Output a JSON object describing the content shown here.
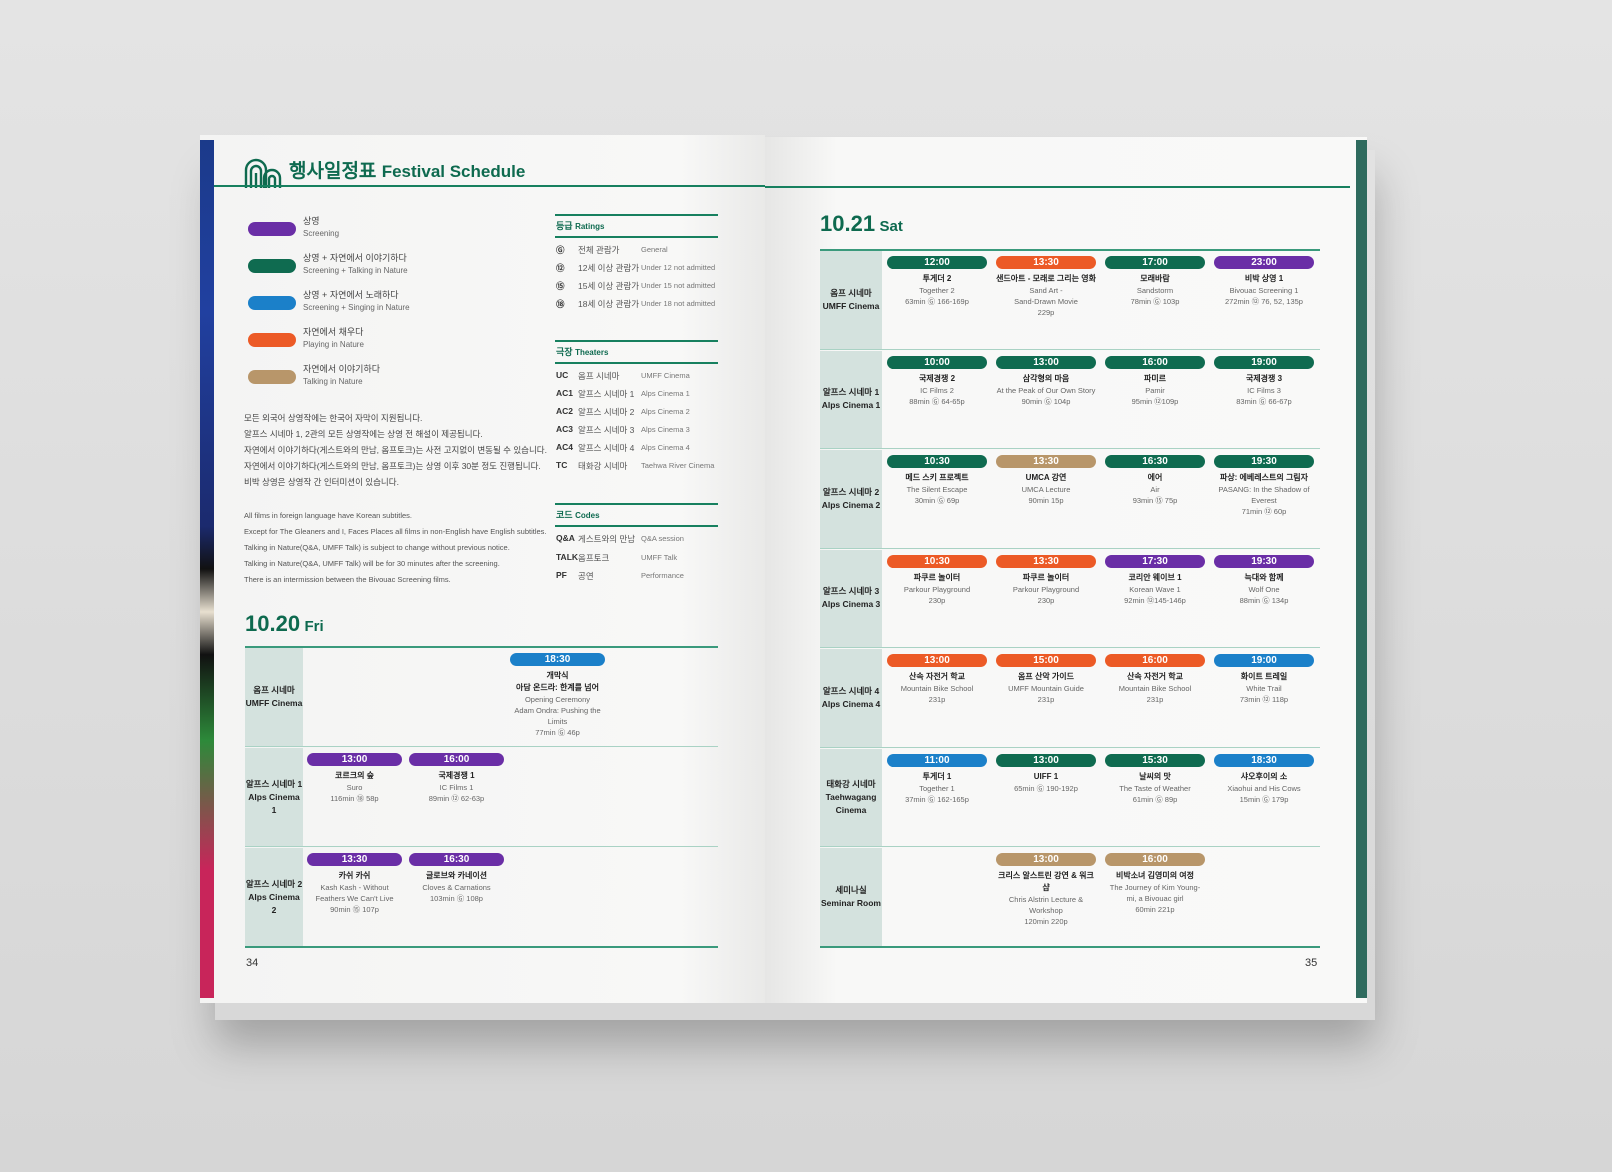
{
  "colors": {
    "screening": "#6a2ea6",
    "talking": "#0f6b50",
    "singing": "#1b80c9",
    "playing": "#ec5a26",
    "talk_only": "#b8966a",
    "accent": "#0e6a4f"
  },
  "header": {
    "title_ko": "행사일정표",
    "title_en": "Festival Schedule",
    "logo": "mountain-logo-icon"
  },
  "legend": [
    {
      "key": "screening",
      "ko": "상영",
      "en": "Screening"
    },
    {
      "key": "talking",
      "ko": "상영 + 자연에서 이야기하다",
      "en": "Screening + Talking in Nature"
    },
    {
      "key": "singing",
      "ko": "상영 + 자연에서 노래하다",
      "en": "Screening + Singing in Nature"
    },
    {
      "key": "playing",
      "ko": "자연에서 채우다",
      "en": "Playing in Nature"
    },
    {
      "key": "talk_only",
      "ko": "자연에서 이야기하다",
      "en": "Talking in Nature"
    }
  ],
  "notes_ko": [
    "모든 외국어 상영작에는 한국어 자막이 지원됩니다.",
    "알프스 시네마 1, 2관의 모든 상영작에는 상영 전 해설이 제공됩니다.",
    "자연에서 이야기하다(게스트와의 만남, 옴프토크)는 사전 고지없이 변동될 수 있습니다.",
    "자연에서 이야기하다(게스트와의 만남, 옴프토크)는 상영 이후 30분 정도 진행됩니다.",
    "비박 상영은 상영작 간 인터미션이 있습니다."
  ],
  "notes_en": [
    "All films in foreign language have Korean subtitles.",
    "Except for The Gleaners and I, Faces Places all films in non-English have English subtitles.",
    "Talking in Nature(Q&A, UMFF Talk) is subject to change without previous notice.",
    "Talking in Nature(Q&A, UMFF Talk) will be for 30 minutes after the screening.",
    "There is an intermission between the Bivouac Screening films."
  ],
  "ratings": {
    "title_ko": "등급",
    "title_en": "Ratings",
    "rows": [
      {
        "code": "Ⓖ",
        "ko": "전체 관람가",
        "en": "General"
      },
      {
        "code": "⑫",
        "ko": "12세 이상 관람가",
        "en": "Under 12 not admitted"
      },
      {
        "code": "⑮",
        "ko": "15세 이상 관람가",
        "en": "Under 15 not admitted"
      },
      {
        "code": "⑱",
        "ko": "18세 이상 관람가",
        "en": "Under 18 not admitted"
      }
    ]
  },
  "theaters": {
    "title_ko": "극장",
    "title_en": "Theaters",
    "rows": [
      {
        "code": "UC",
        "ko": "옴프 시네마",
        "en": "UMFF Cinema"
      },
      {
        "code": "AC1",
        "ko": "알프스 시네마 1",
        "en": "Alps Cinema 1"
      },
      {
        "code": "AC2",
        "ko": "알프스 시네마 2",
        "en": "Alps Cinema 2"
      },
      {
        "code": "AC3",
        "ko": "알프스 시네마 3",
        "en": "Alps Cinema 3"
      },
      {
        "code": "AC4",
        "ko": "알프스 시네마 4",
        "en": "Alps Cinema 4"
      },
      {
        "code": "TC",
        "ko": "태화강 시네마",
        "en": "Taehwa River Cinema"
      }
    ]
  },
  "codes": {
    "title_ko": "코드",
    "title_en": "Codes",
    "rows": [
      {
        "code": "Q&A",
        "ko": "게스트와의 만남",
        "en": "Q&A session"
      },
      {
        "code": "TALK",
        "ko": "옴프토크",
        "en": "UMFF Talk"
      },
      {
        "code": "PF",
        "ko": "공연",
        "en": "Performance"
      }
    ]
  },
  "day1": {
    "date": "10.20",
    "weekday": "Fri",
    "page": "34",
    "rows": [
      {
        "ko": "옴프 시네마",
        "en": "UMFF Cinema",
        "events": [
          null,
          null,
          {
            "time": "18:30",
            "key": "singing",
            "ko": "개막식\n아담 온드라: 한계를 넘어",
            "en": "Opening Ceremony\nAdam Ondra: Pushing the Limits",
            "info": "77min Ⓖ 46p"
          }
        ]
      },
      {
        "ko": "알프스 시네마 1",
        "en": "Alps Cinema 1",
        "events": [
          {
            "time": "13:00",
            "key": "screening",
            "ko": "코르크의 숲",
            "en": "Suro",
            "info": "116min ⑱ 58p"
          },
          {
            "time": "16:00",
            "key": "screening",
            "ko": "국제경쟁 1",
            "en": "IC Films 1",
            "info": "89min ⑫ 62-63p"
          }
        ]
      },
      {
        "ko": "알프스 시네마 2",
        "en": "Alps Cinema 2",
        "events": [
          {
            "time": "13:30",
            "key": "screening",
            "ko": "카쉬 카쉬",
            "en": "Kash Kash - Without Feathers We Can't Live",
            "info": "90min ⑮ 107p"
          },
          {
            "time": "16:30",
            "key": "screening",
            "ko": "글로브와 카네이션",
            "en": "Cloves & Carnations",
            "info": "103min Ⓖ 108p"
          }
        ]
      }
    ]
  },
  "day2": {
    "date": "10.21",
    "weekday": "Sat",
    "page": "35",
    "rows": [
      {
        "ko": "옴프 시네마",
        "en": "UMFF Cinema",
        "events": [
          {
            "time": "12:00",
            "key": "talking",
            "ko": "투게더 2",
            "en": "Together 2",
            "info": "63min Ⓖ 166-169p"
          },
          {
            "time": "13:30",
            "key": "playing",
            "ko": "샌드아트 - 모래로 그리는 영화",
            "en": "Sand Art -\nSand-Drawn Movie",
            "info": "229p"
          },
          {
            "time": "17:00",
            "key": "talking",
            "ko": "모래바람",
            "en": "Sandstorm",
            "info": "78min Ⓖ 103p"
          },
          {
            "time": "23:00",
            "key": "screening",
            "ko": "비박 상영 1",
            "en": "Bivouac Screening 1",
            "info": "272min ⑫ 76, 52, 135p"
          }
        ]
      },
      {
        "ko": "알프스 시네마 1",
        "en": "Alps Cinema 1",
        "events": [
          {
            "time": "10:00",
            "key": "talking",
            "ko": "국제경쟁 2",
            "en": "IC Films 2",
            "info": "88min Ⓖ 64-65p"
          },
          {
            "time": "13:00",
            "key": "talking",
            "ko": "삼각형의 마음",
            "en": "At the Peak of Our Own Story",
            "info": "90min Ⓖ 104p"
          },
          {
            "time": "16:00",
            "key": "talking",
            "ko": "파미르",
            "en": "Pamir",
            "info": "95min ⑫109p"
          },
          {
            "time": "19:00",
            "key": "talking",
            "ko": "국제경쟁 3",
            "en": "IC Films 3",
            "info": "83min Ⓖ 66-67p"
          }
        ]
      },
      {
        "ko": "알프스 시네마 2",
        "en": "Alps Cinema 2",
        "events": [
          {
            "time": "10:30",
            "key": "talking",
            "ko": "메드 스키 프로젝트",
            "en": "The Silent Escape",
            "info": "30min Ⓖ 69p"
          },
          {
            "time": "13:30",
            "key": "talk_only",
            "ko": "UMCA 강연",
            "en": "UMCA Lecture",
            "info": "90min 15p"
          },
          {
            "time": "16:30",
            "key": "talking",
            "ko": "에어",
            "en": "Air",
            "info": "93min ⑮ 75p"
          },
          {
            "time": "19:30",
            "key": "talking",
            "ko": "파상: 에베레스트의 그림자",
            "en": "PASANG: In the Shadow of Everest",
            "info": "71min ⑫ 60p"
          }
        ]
      },
      {
        "ko": "알프스 시네마 3",
        "en": "Alps Cinema 3",
        "events": [
          {
            "time": "10:30",
            "key": "playing",
            "ko": "파쿠르 놀이터",
            "en": "Parkour Playground",
            "info": "230p"
          },
          {
            "time": "13:30",
            "key": "playing",
            "ko": "파쿠르 놀이터",
            "en": "Parkour Playground",
            "info": "230p"
          },
          {
            "time": "17:30",
            "key": "screening",
            "ko": "코리안 웨이브 1",
            "en": "Korean Wave 1",
            "info": "92min ⑫145-146p"
          },
          {
            "time": "19:30",
            "key": "screening",
            "ko": "늑대와 함께",
            "en": "Wolf One",
            "info": "88min Ⓖ 134p"
          }
        ]
      },
      {
        "ko": "알프스 시네마 4",
        "en": "Alps Cinema 4",
        "events": [
          {
            "time": "13:00",
            "key": "playing",
            "ko": "산속 자전거 학교",
            "en": "Mountain Bike School",
            "info": "231p"
          },
          {
            "time": "15:00",
            "key": "playing",
            "ko": "옴프 산악 가이드",
            "en": "UMFF Mountain Guide",
            "info": "231p"
          },
          {
            "time": "16:00",
            "key": "playing",
            "ko": "산속 자전거 학교",
            "en": "Mountain Bike School",
            "info": "231p"
          },
          {
            "time": "19:00",
            "key": "singing",
            "ko": "화이트 트레일",
            "en": "White Trail",
            "info": "73min ⑫ 118p"
          }
        ]
      },
      {
        "ko": "태화강 시네마",
        "en": "Taehwagang Cinema",
        "events": [
          {
            "time": "11:00",
            "key": "singing",
            "ko": "투게더 1",
            "en": "Together 1",
            "info": "37min Ⓖ 162-165p"
          },
          {
            "time": "13:00",
            "key": "talking",
            "ko": "UIFF 1",
            "en": "",
            "info": "65min Ⓖ 190-192p"
          },
          {
            "time": "15:30",
            "key": "talking",
            "ko": "날씨의 맛",
            "en": "The Taste of Weather",
            "info": "61min Ⓖ 89p"
          },
          {
            "time": "18:30",
            "key": "singing",
            "ko": "샤오후이의 소",
            "en": "Xiaohui and His Cows",
            "info": "15min Ⓖ 179p"
          }
        ]
      },
      {
        "ko": "세미나실",
        "en": "Seminar Room",
        "events": [
          null,
          {
            "time": "13:00",
            "key": "talk_only",
            "ko": "크리스 알스트린 강연 & 워크샵",
            "en": "Chris Alstrin Lecture & Workshop",
            "info": "120min 220p"
          },
          {
            "time": "16:00",
            "key": "talk_only",
            "ko": "비박소녀 김영미의 여정",
            "en": "The Journey of Kim Young-mi, a Bivouac girl",
            "info": "60min 221p"
          }
        ]
      }
    ]
  }
}
